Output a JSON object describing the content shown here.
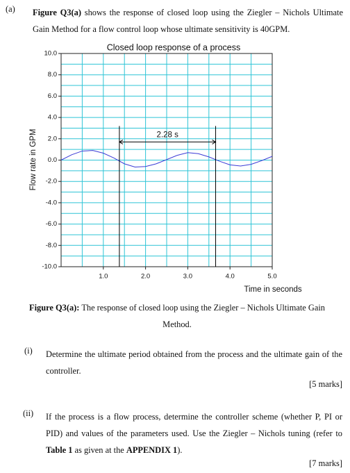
{
  "header": {
    "label": "(a)",
    "lead": "Figure Q3(a)",
    "text": "shows the response of closed loop using the Ziegler – Nichols Ultimate Gain Method for a flow control loop whose ultimate sensitivity is 40GPM."
  },
  "chart_data": {
    "type": "line",
    "title": "Closed loop response of a process",
    "x_label": "Time in seconds",
    "y_label": "Flow rate in GPM",
    "x": [
      0,
      0.25,
      0.5,
      0.75,
      1.0,
      1.25,
      1.5,
      1.75,
      2.0,
      2.25,
      2.5,
      2.75,
      3.0,
      3.25,
      3.5,
      3.75,
      4.0,
      4.25,
      4.5,
      4.75,
      5.0
    ],
    "series": [
      {
        "name": "Flow rate",
        "color": "#3b3bd6",
        "values": [
          0,
          0.5,
          0.85,
          0.9,
          0.65,
          0.2,
          -0.35,
          -0.65,
          -0.6,
          -0.35,
          0.05,
          0.45,
          0.7,
          0.6,
          0.3,
          -0.1,
          -0.45,
          -0.55,
          -0.4,
          -0.05,
          0.35
        ]
      }
    ],
    "xlim": [
      0,
      5
    ],
    "ylim": [
      -10,
      10
    ],
    "xticks": [
      {
        "value": 1,
        "label": "1.0"
      },
      {
        "value": 2,
        "label": "2.0"
      },
      {
        "value": 3,
        "label": "3.0"
      },
      {
        "value": 4,
        "label": "4.0"
      },
      {
        "value": 5,
        "label": "5.0"
      }
    ],
    "yticks": [
      {
        "value": 10,
        "label": "10.0"
      },
      {
        "value": 8,
        "label": "8.0"
      },
      {
        "value": 6,
        "label": "6.0"
      },
      {
        "value": 4,
        "label": "4.0"
      },
      {
        "value": 2,
        "label": "2.0"
      },
      {
        "value": 0,
        "label": "0.0"
      },
      {
        "value": -2,
        "label": "-2.0"
      },
      {
        "value": -4,
        "label": "-4.0"
      },
      {
        "value": -6,
        "label": "-6.0"
      },
      {
        "value": -8,
        "label": "-8.0"
      },
      {
        "value": -10,
        "label": "-10.0"
      }
    ],
    "xgrid": [
      0.5,
      1,
      1.5,
      2,
      2.5,
      3,
      3.5,
      4,
      4.5
    ],
    "ygrid": [
      9,
      8,
      7,
      6,
      5,
      4,
      3,
      2,
      1,
      0,
      -1,
      -2,
      -3,
      -4,
      -5,
      -6,
      -7,
      -8,
      -9
    ],
    "grid": true,
    "annotation": {
      "text": "2.28 s",
      "x": [
        1.38,
        3.66
      ],
      "top": 3.2,
      "arrow_y": 1.7
    }
  },
  "caption": {
    "lead": "Figure Q3(a):",
    "text": "The response of closed loop using the Ziegler – Nichols Ultimate Gain Method."
  },
  "questions": [
    {
      "label": "(i)",
      "parts": [
        "Determine the ultimate period obtained from the process and the ultimate gain of the controller."
      ],
      "marks": "[5 marks]"
    },
    {
      "label": "(ii)",
      "parts": [
        "If the process is a flow process, determine the controller scheme (whether P, PI or PID) and values of the parameters used. Use the Ziegler – Nichols tuning (refer to ",
        "Table 1",
        " as given at the ",
        "APPENDIX 1",
        ")."
      ],
      "marks": "[7 marks]"
    }
  ]
}
